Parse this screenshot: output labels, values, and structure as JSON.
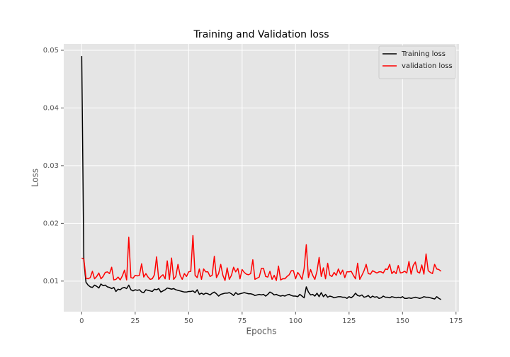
{
  "chart_data": {
    "type": "line",
    "title": "Training and Validation loss",
    "x_label": "Epochs",
    "y_label": "Loss",
    "x": [
      0,
      1,
      2,
      3,
      4,
      5,
      6,
      7,
      8,
      9,
      10,
      11,
      12,
      13,
      14,
      15,
      16,
      17,
      18,
      19,
      20,
      21,
      22,
      23,
      24,
      25,
      26,
      27,
      28,
      29,
      30,
      31,
      32,
      33,
      34,
      35,
      36,
      37,
      38,
      39,
      40,
      41,
      42,
      43,
      44,
      45,
      46,
      47,
      48,
      49,
      50,
      51,
      52,
      53,
      54,
      55,
      56,
      57,
      58,
      59,
      60,
      61,
      62,
      63,
      64,
      65,
      66,
      67,
      68,
      69,
      70,
      71,
      72,
      73,
      74,
      75,
      76,
      77,
      78,
      79,
      80,
      81,
      82,
      83,
      84,
      85,
      86,
      87,
      88,
      89,
      90,
      91,
      92,
      93,
      94,
      95,
      96,
      97,
      98,
      99,
      100,
      101,
      102,
      103,
      104,
      105,
      106,
      107,
      108,
      109,
      110,
      111,
      112,
      113,
      114,
      115,
      116,
      117,
      118,
      119,
      120,
      121,
      122,
      123,
      124,
      125,
      126,
      127,
      128,
      129,
      130,
      131,
      132,
      133,
      134,
      135,
      136,
      137,
      138,
      139,
      140,
      141,
      142,
      143,
      144,
      145,
      146,
      147,
      148,
      149,
      150,
      151,
      152,
      153,
      154,
      155,
      156,
      157,
      158,
      159,
      160,
      161,
      162,
      163,
      164,
      165,
      166,
      167,
      168
    ],
    "series": [
      {
        "name": "Training loss",
        "color": "#000000",
        "values": [
          0.049,
          0.0135,
          0.0098,
          0.0093,
          0.009,
          0.0089,
          0.0093,
          0.0091,
          0.0088,
          0.0095,
          0.0092,
          0.0093,
          0.009,
          0.0089,
          0.0087,
          0.0089,
          0.0082,
          0.0086,
          0.0085,
          0.0088,
          0.0089,
          0.0087,
          0.0093,
          0.0085,
          0.0083,
          0.0085,
          0.0084,
          0.0085,
          0.0081,
          0.008,
          0.0085,
          0.0084,
          0.0083,
          0.0082,
          0.0086,
          0.0085,
          0.0087,
          0.0081,
          0.0083,
          0.0085,
          0.0088,
          0.0087,
          0.0086,
          0.0087,
          0.0085,
          0.0084,
          0.0083,
          0.0082,
          0.0081,
          0.0081,
          0.0082,
          0.0082,
          0.0083,
          0.008,
          0.0085,
          0.0077,
          0.0079,
          0.0077,
          0.0079,
          0.0078,
          0.0076,
          0.0079,
          0.0081,
          0.0078,
          0.0074,
          0.0077,
          0.0078,
          0.0079,
          0.0079,
          0.008,
          0.0078,
          0.0075,
          0.008,
          0.0077,
          0.0078,
          0.0079,
          0.008,
          0.0079,
          0.0078,
          0.0078,
          0.0077,
          0.0075,
          0.0076,
          0.0077,
          0.0076,
          0.0077,
          0.0074,
          0.0077,
          0.0081,
          0.0079,
          0.0076,
          0.0077,
          0.0075,
          0.0074,
          0.0075,
          0.0074,
          0.0076,
          0.0077,
          0.0075,
          0.0074,
          0.0074,
          0.0073,
          0.0077,
          0.0074,
          0.0071,
          0.009,
          0.0081,
          0.0076,
          0.0077,
          0.0074,
          0.0079,
          0.0073,
          0.008,
          0.0073,
          0.0077,
          0.0072,
          0.0074,
          0.0073,
          0.0071,
          0.0072,
          0.0073,
          0.0073,
          0.0072,
          0.0072,
          0.007,
          0.0073,
          0.0071,
          0.0074,
          0.0079,
          0.0075,
          0.0074,
          0.0076,
          0.0072,
          0.0073,
          0.0075,
          0.0071,
          0.0074,
          0.0072,
          0.0073,
          0.007,
          0.0071,
          0.0074,
          0.0072,
          0.0072,
          0.0071,
          0.0073,
          0.0072,
          0.0071,
          0.0072,
          0.0071,
          0.0073,
          0.007,
          0.007,
          0.0071,
          0.007,
          0.0071,
          0.0072,
          0.0071,
          0.007,
          0.0071,
          0.0073,
          0.0072,
          0.0072,
          0.0071,
          0.007,
          0.0069,
          0.0073,
          0.007,
          0.0068
        ]
      },
      {
        "name": "validation loss",
        "color": "#ff0000",
        "values": [
          0.014,
          0.0138,
          0.0105,
          0.0104,
          0.0106,
          0.0117,
          0.0104,
          0.0108,
          0.0114,
          0.0104,
          0.0108,
          0.0115,
          0.0116,
          0.0113,
          0.0124,
          0.0102,
          0.0103,
          0.0107,
          0.0102,
          0.0109,
          0.0119,
          0.0102,
          0.0176,
          0.0106,
          0.0105,
          0.011,
          0.0109,
          0.011,
          0.013,
          0.0107,
          0.0113,
          0.0107,
          0.0103,
          0.0104,
          0.0111,
          0.0142,
          0.0103,
          0.0108,
          0.0111,
          0.0104,
          0.0135,
          0.0103,
          0.014,
          0.0103,
          0.0108,
          0.0129,
          0.011,
          0.0103,
          0.0113,
          0.0108,
          0.0116,
          0.0117,
          0.0179,
          0.011,
          0.0106,
          0.0121,
          0.0103,
          0.0121,
          0.0116,
          0.0116,
          0.0108,
          0.011,
          0.0143,
          0.0106,
          0.0113,
          0.0129,
          0.011,
          0.0101,
          0.0123,
          0.0103,
          0.011,
          0.0124,
          0.0116,
          0.0122,
          0.0104,
          0.012,
          0.0115,
          0.0112,
          0.0111,
          0.0113,
          0.0137,
          0.0103,
          0.0105,
          0.0107,
          0.0122,
          0.0122,
          0.0108,
          0.0107,
          0.0117,
          0.0103,
          0.011,
          0.0101,
          0.0126,
          0.0102,
          0.0104,
          0.0104,
          0.0108,
          0.0111,
          0.0118,
          0.0118,
          0.0104,
          0.0115,
          0.011,
          0.0103,
          0.0122,
          0.0163,
          0.0106,
          0.012,
          0.011,
          0.0103,
          0.0117,
          0.0141,
          0.0108,
          0.0123,
          0.0104,
          0.0131,
          0.011,
          0.0108,
          0.0115,
          0.011,
          0.0121,
          0.0112,
          0.0119,
          0.0106,
          0.0116,
          0.0116,
          0.0117,
          0.011,
          0.0104,
          0.0131,
          0.0103,
          0.011,
          0.0118,
          0.0129,
          0.0113,
          0.0112,
          0.0118,
          0.0116,
          0.0114,
          0.0116,
          0.0116,
          0.0114,
          0.0121,
          0.012,
          0.0129,
          0.0113,
          0.0117,
          0.0113,
          0.0127,
          0.0114,
          0.0115,
          0.0117,
          0.0114,
          0.0134,
          0.0112,
          0.0127,
          0.0133,
          0.0116,
          0.0114,
          0.0128,
          0.0112,
          0.0147,
          0.0118,
          0.0115,
          0.0113,
          0.0129,
          0.0121,
          0.012,
          0.0117
        ]
      }
    ],
    "xlim": [
      -8.4,
      176.4
    ],
    "xticks": [
      0,
      25,
      50,
      75,
      100,
      125,
      150,
      175
    ],
    "ylim": [
      0.0047,
      0.0511
    ],
    "yticks": [
      0.01,
      0.02,
      0.03,
      0.04,
      0.05
    ],
    "grid": true,
    "legend": "upper right"
  }
}
